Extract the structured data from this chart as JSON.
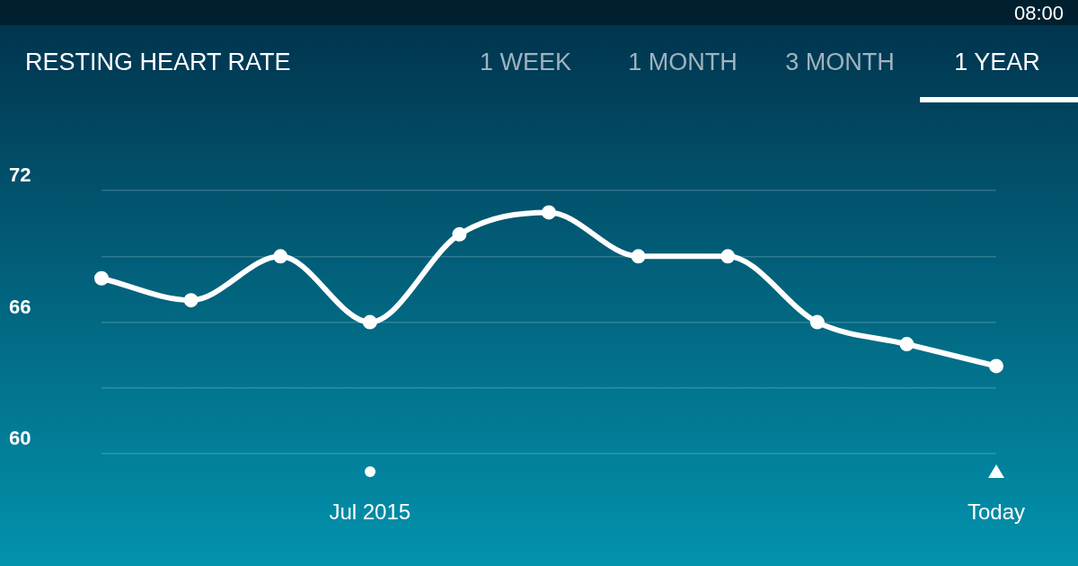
{
  "chart_data": {
    "type": "line",
    "title": "RESTING HEART RATE",
    "annotations": [
      "08:00",
      "1 WEEK",
      "1 MONTH",
      "3 MONTH",
      "1 YEAR"
    ],
    "categories": [
      null,
      null,
      null,
      "Jul 2015",
      null,
      null,
      null,
      null,
      null,
      null,
      "Today"
    ],
    "series": [
      {
        "color": "#ffffff",
        "values": [
          68,
          67,
          69,
          66,
          70,
          71,
          69,
          69,
          66,
          65,
          64
        ]
      }
    ],
    "ylim": [
      60,
      72
    ],
    "yticks": [
      60,
      {
        "value": 63,
        "label": null
      },
      66,
      {
        "value": 69,
        "label": null
      },
      72
    ],
    "grid": "y",
    "legend": false,
    "marker": "circle",
    "line_style": "solid"
  }
}
